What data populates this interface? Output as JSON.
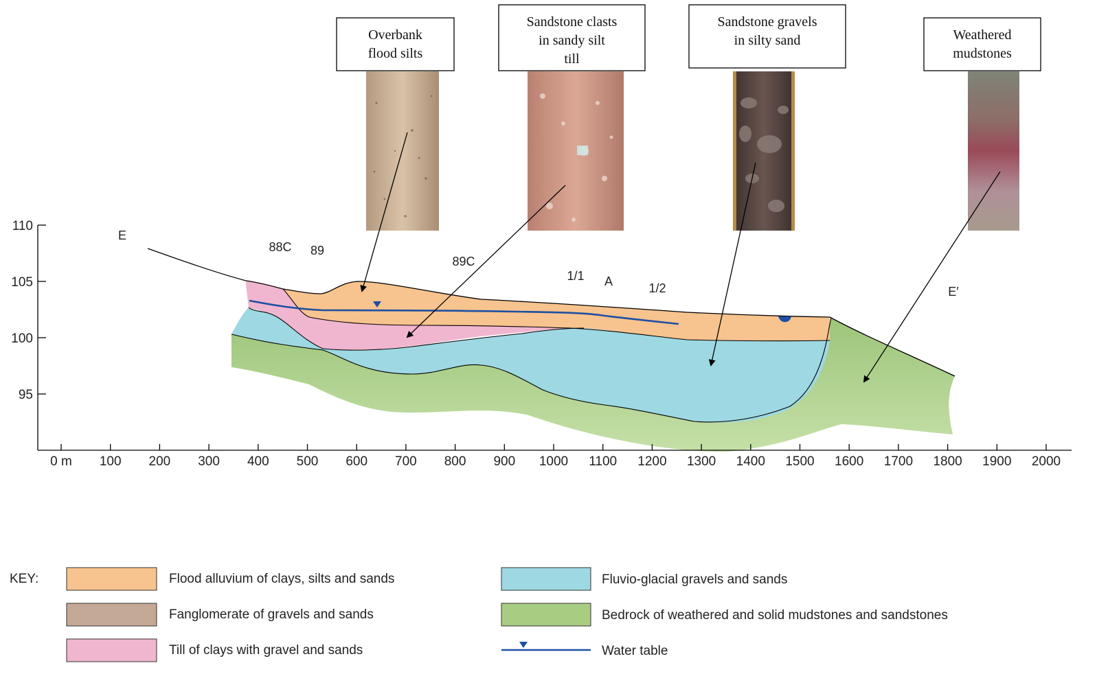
{
  "y_axis": {
    "ticks": [
      {
        "value": 110,
        "label": "110"
      },
      {
        "value": 105,
        "label": "105"
      },
      {
        "value": 100,
        "label": "100"
      },
      {
        "value": 95,
        "label": "95"
      }
    ]
  },
  "x_axis": {
    "ticks": [
      {
        "value": 0,
        "label": "0 m"
      },
      {
        "value": 100,
        "label": "100"
      },
      {
        "value": 200,
        "label": "200"
      },
      {
        "value": 300,
        "label": "300"
      },
      {
        "value": 400,
        "label": "400"
      },
      {
        "value": 500,
        "label": "500"
      },
      {
        "value": 600,
        "label": "600"
      },
      {
        "value": 700,
        "label": "700"
      },
      {
        "value": 800,
        "label": "800"
      },
      {
        "value": 900,
        "label": "900"
      },
      {
        "value": 1000,
        "label": "1000"
      },
      {
        "value": 1100,
        "label": "1100"
      },
      {
        "value": 1200,
        "label": "1200"
      },
      {
        "value": 1300,
        "label": "1300"
      },
      {
        "value": 1400,
        "label": "1400"
      },
      {
        "value": 1500,
        "label": "1500"
      },
      {
        "value": 1600,
        "label": "1600"
      },
      {
        "value": 1700,
        "label": "1700"
      },
      {
        "value": 1800,
        "label": "1800"
      },
      {
        "value": 1900,
        "label": "1900"
      },
      {
        "value": 2000,
        "label": "2000"
      }
    ]
  },
  "section_labels": {
    "e_start": "E",
    "e_end": "E′",
    "bh_88c": "88C",
    "bh_89": "89",
    "bh_89c": "89C",
    "bh_1_1": "1/1",
    "bh_a": "A",
    "bh_1_2": "1/2"
  },
  "core_boxes": [
    {
      "lines": [
        "Overbank",
        "flood silts"
      ]
    },
    {
      "lines": [
        "Sandstone clasts",
        "in sandy silt",
        "till"
      ]
    },
    {
      "lines": [
        "Sandstone gravels",
        "in silty sand"
      ]
    },
    {
      "lines": [
        "Weathered",
        "mudstones"
      ]
    }
  ],
  "key": {
    "title": "KEY:",
    "items": [
      {
        "label": "Flood alluvium of clays, silts and sands",
        "color": "#f7c38e"
      },
      {
        "label": "Fanglomerate of gravels and sands",
        "color": "#c4a996"
      },
      {
        "label": "Till of clays with gravel and sands",
        "color": "#f0b6d0"
      },
      {
        "label": "Fluvio-glacial gravels and sands",
        "color": "#9ed8e2"
      },
      {
        "label": "Bedrock of weathered and solid mudstones and sandstones",
        "color": "#a9cc83"
      },
      {
        "label": "Water table",
        "color": "#1d4fa3"
      }
    ]
  }
}
